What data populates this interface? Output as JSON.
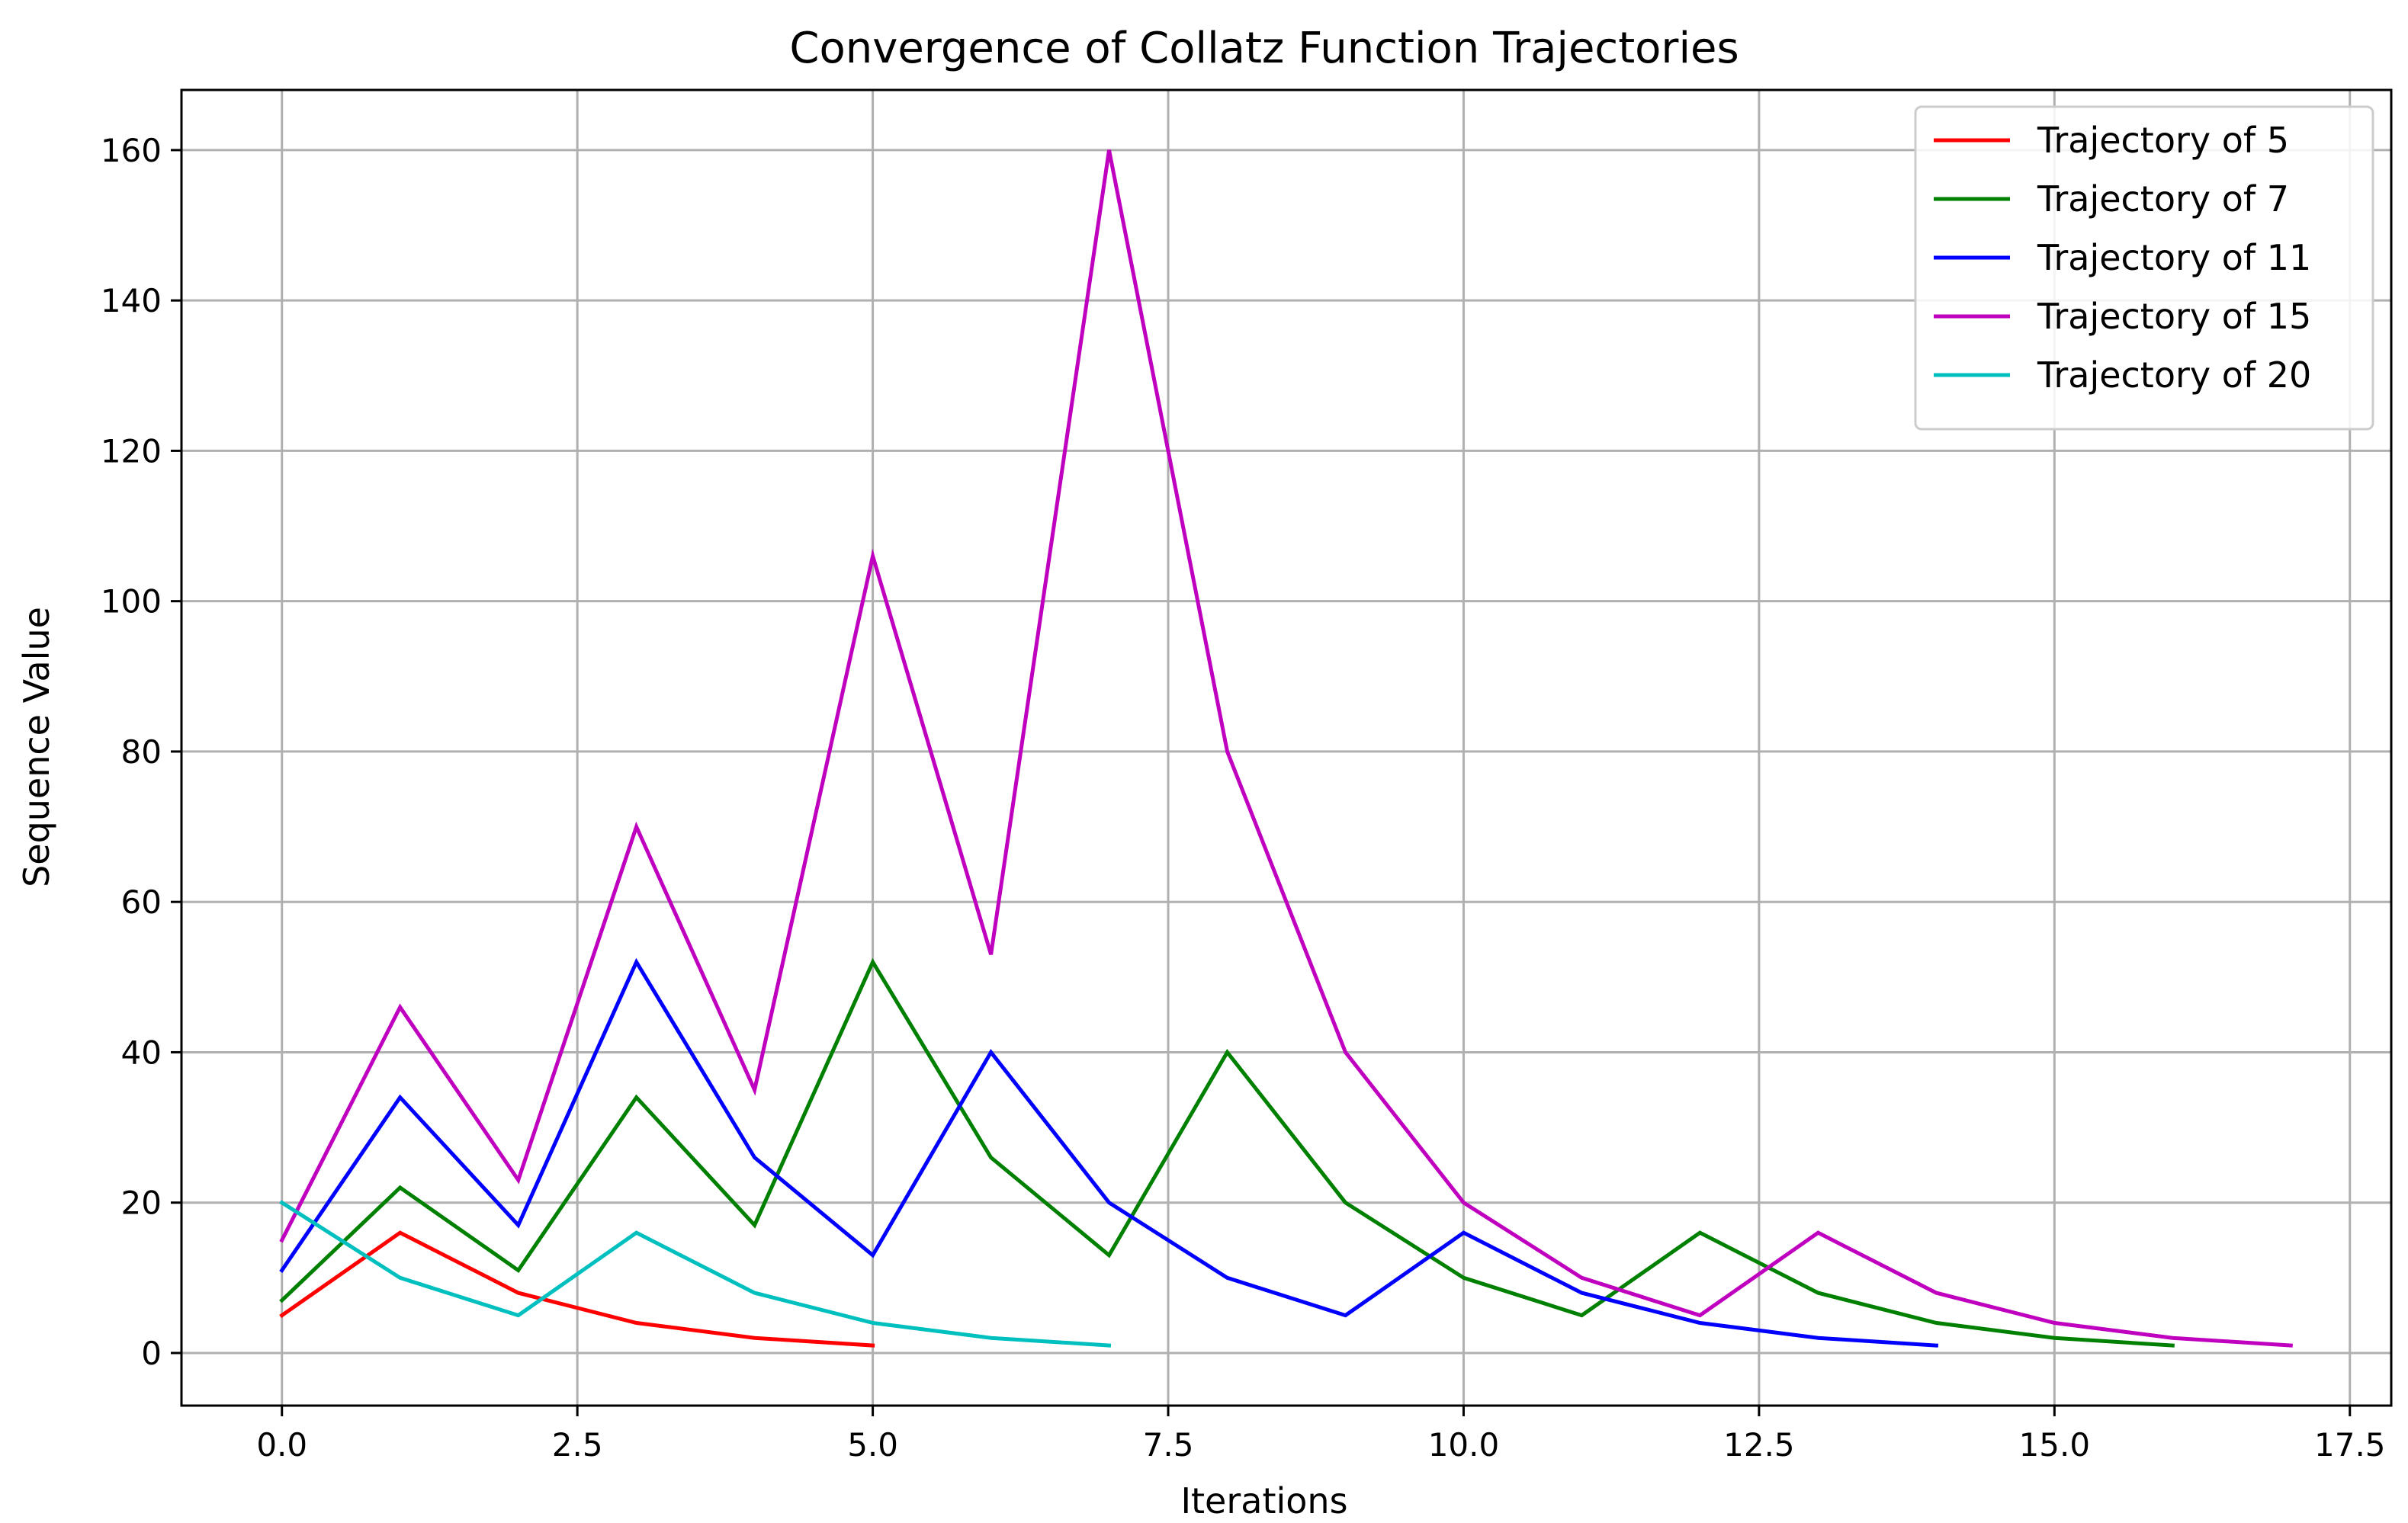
{
  "chart_data": {
    "type": "line",
    "title": "Convergence of Collatz Function Trajectories",
    "xlabel": "Iterations",
    "ylabel": "Sequence Value",
    "xlim": [
      -0.85,
      17.85
    ],
    "ylim": [
      -7,
      168
    ],
    "xticks": [
      0.0,
      2.5,
      5.0,
      7.5,
      10.0,
      12.5,
      15.0,
      17.5
    ],
    "xtick_labels": [
      "0.0",
      "2.5",
      "5.0",
      "7.5",
      "10.0",
      "12.5",
      "15.0",
      "17.5"
    ],
    "yticks": [
      0,
      20,
      40,
      60,
      80,
      100,
      120,
      140,
      160
    ],
    "ytick_labels": [
      "0",
      "20",
      "40",
      "60",
      "80",
      "100",
      "120",
      "140",
      "160"
    ],
    "grid": true,
    "legend_position": "top-right",
    "series": [
      {
        "name": "Trajectory of 5",
        "color": "#ff0000",
        "x": [
          0,
          1,
          2,
          3,
          4,
          5
        ],
        "y": [
          5,
          16,
          8,
          4,
          2,
          1
        ]
      },
      {
        "name": "Trajectory of 7",
        "color": "#008000",
        "x": [
          0,
          1,
          2,
          3,
          4,
          5,
          6,
          7,
          8,
          9,
          10,
          11,
          12,
          13,
          14,
          15,
          16
        ],
        "y": [
          7,
          22,
          11,
          34,
          17,
          52,
          26,
          13,
          40,
          20,
          10,
          5,
          16,
          8,
          4,
          2,
          1
        ]
      },
      {
        "name": "Trajectory of 11",
        "color": "#0000ff",
        "x": [
          0,
          1,
          2,
          3,
          4,
          5,
          6,
          7,
          8,
          9,
          10,
          11,
          12,
          13,
          14
        ],
        "y": [
          11,
          34,
          17,
          52,
          26,
          13,
          40,
          20,
          10,
          5,
          16,
          8,
          4,
          2,
          1
        ]
      },
      {
        "name": "Trajectory of 15",
        "color": "#bf00bf",
        "x": [
          0,
          1,
          2,
          3,
          4,
          5,
          6,
          7,
          8,
          9,
          10,
          11,
          12,
          13,
          14,
          15,
          16,
          17
        ],
        "y": [
          15,
          46,
          23,
          70,
          35,
          106,
          53,
          160,
          80,
          40,
          20,
          10,
          5,
          16,
          8,
          4,
          2,
          1
        ]
      },
      {
        "name": "Trajectory of 20",
        "color": "#00bfbf",
        "x": [
          0,
          1,
          2,
          3,
          4,
          5,
          6,
          7
        ],
        "y": [
          20,
          10,
          5,
          16,
          8,
          4,
          2,
          1
        ]
      }
    ]
  }
}
